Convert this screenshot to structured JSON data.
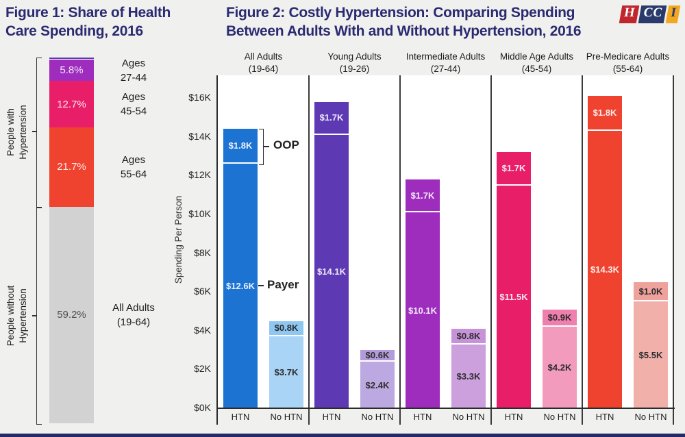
{
  "page": {
    "background": "#f0f0ee",
    "footer_bar_color": "#232a66"
  },
  "logo": {
    "blocks": [
      {
        "text": "H",
        "bg": "#c0272d",
        "fg": "#ffffff"
      },
      {
        "text": "CC",
        "bg": "#2a3a6b",
        "fg": "#ffffff"
      },
      {
        "text": "I",
        "bg": "#f3a81f",
        "fg": "#2a3a6b"
      }
    ]
  },
  "fig1": {
    "title": "Figure 1: Share of Health\nCare Spending, 2016",
    "row_labels": [
      "People with\nHypertension",
      "People without\nHypertension"
    ]
  },
  "fig2": {
    "title": "Figure 2: Costly Hypertension: Comparing Spending\nBetween Adults With and Without Hypertension, 2016",
    "ylabel": "Spending Per Person",
    "annotations": {
      "oop": "OOP",
      "payer": "Payer"
    }
  },
  "chart_data": [
    {
      "figure": "Figure 1",
      "type": "bar",
      "stacked": true,
      "title": "Share of Health Care Spending, 2016",
      "unit": "percent of total health care spending",
      "segments": [
        {
          "group": "People with Hypertension",
          "label": "Ages 19-26 (unlabeled sliver)",
          "pct": 0.6,
          "pct_label": "",
          "side_label": [],
          "color": "#5d3ab4",
          "label_color": "#ffffff"
        },
        {
          "group": "People with Hypertension",
          "label": "Ages 27-44",
          "pct": 5.8,
          "pct_label": "5.8%",
          "side_label": [
            "Ages",
            "27-44"
          ],
          "color": "#9e2dbe",
          "label_color": "#f2e7f7"
        },
        {
          "group": "People with Hypertension",
          "label": "Ages 45-54",
          "pct": 12.7,
          "pct_label": "12.7%",
          "side_label": [
            "Ages",
            "45-54"
          ],
          "color": "#e81f68",
          "label_color": "#fce9f1"
        },
        {
          "group": "People with Hypertension",
          "label": "Ages 55-64",
          "pct": 21.7,
          "pct_label": "21.7%",
          "side_label": [
            "Ages",
            "55-64"
          ],
          "color": "#f0432f",
          "label_color": "#fdeae8"
        },
        {
          "group": "People without Hypertension",
          "label": "All Adults (19-64)",
          "pct": 59.2,
          "pct_label": "59.2%",
          "side_label": [
            "All Adults",
            "(19-64)"
          ],
          "color": "#d2d2d2",
          "label_color": "#4f4f4f"
        }
      ]
    },
    {
      "figure": "Figure 2",
      "type": "bar",
      "stacked": true,
      "title": "Costly Hypertension: Comparing Spending Between Adults With and Without Hypertension, 2016",
      "ylabel": "Spending Per Person",
      "ylim_k": [
        0,
        16
      ],
      "yticks": [
        "$0K",
        "$2K",
        "$4K",
        "$6K",
        "$8K",
        "$10K",
        "$12K",
        "$14K",
        "$16K"
      ],
      "bar_categories": [
        "HTN",
        "No HTN"
      ],
      "legend_notes": [
        "OOP = top segment of each bar",
        "Payer = bottom segment of each bar"
      ],
      "groups": [
        {
          "name": "All Adults",
          "range": "(19-64)",
          "htn": {
            "payer_k": 12.6,
            "oop_k": 1.8,
            "payer_label": "$12.6K",
            "oop_label": "$1.8K",
            "color": "#1d73d2",
            "oop_color": "#1d73d2",
            "text": "#eaf1fb"
          },
          "no_htn": {
            "payer_k": 3.7,
            "oop_k": 0.8,
            "payer_label": "$3.7K",
            "oop_label": "$0.8K",
            "color": "#a9d4f6",
            "oop_color": "#8ec7f2",
            "text": "#2d2d2d"
          }
        },
        {
          "name": "Young Adults",
          "range": "(19-26)",
          "htn": {
            "payer_k": 14.1,
            "oop_k": 1.7,
            "payer_label": "$14.1K",
            "oop_label": "$1.7K",
            "color": "#5d3ab4",
            "oop_color": "#5d3ab4",
            "text": "#ece6f8"
          },
          "no_htn": {
            "payer_k": 2.4,
            "oop_k": 0.6,
            "payer_label": "$2.4K",
            "oop_label": "$0.6K",
            "color": "#bda9e2",
            "oop_color": "#b29bda",
            "text": "#2d2d2d"
          }
        },
        {
          "name": "Intermediate Adults",
          "range": "(27-44)",
          "htn": {
            "payer_k": 10.1,
            "oop_k": 1.7,
            "payer_label": "$10.1K",
            "oop_label": "$1.7K",
            "color": "#9e2dbe",
            "oop_color": "#9e2dbe",
            "text": "#f2e7f7"
          },
          "no_htn": {
            "payer_k": 3.3,
            "oop_k": 0.8,
            "payer_label": "$3.3K",
            "oop_label": "$0.8K",
            "color": "#cc9fdd",
            "oop_color": "#c793d8",
            "text": "#2d2d2d"
          }
        },
        {
          "name": "Middle Age Adults",
          "range": "(45-54)",
          "htn": {
            "payer_k": 11.5,
            "oop_k": 1.7,
            "payer_label": "$11.5K",
            "oop_label": "$1.7K",
            "color": "#e81f68",
            "oop_color": "#e81f68",
            "text": "#fce9f1"
          },
          "no_htn": {
            "payer_k": 4.2,
            "oop_k": 0.9,
            "payer_label": "$4.2K",
            "oop_label": "$0.9K",
            "color": "#f29bbd",
            "oop_color": "#ee7fae",
            "text": "#2d2d2d"
          }
        },
        {
          "name": "Pre-Medicare Adults",
          "range": "(55-64)",
          "htn": {
            "payer_k": 14.3,
            "oop_k": 1.8,
            "payer_label": "$14.3K",
            "oop_label": "$1.8K",
            "color": "#f0432f",
            "oop_color": "#f0432f",
            "text": "#fdeae8"
          },
          "no_htn": {
            "payer_k": 5.5,
            "oop_k": 1.0,
            "payer_label": "$5.5K",
            "oop_label": "$1.0K",
            "color": "#f2b0ab",
            "oop_color": "#efa19c",
            "text": "#2d2d2d"
          }
        }
      ]
    }
  ]
}
